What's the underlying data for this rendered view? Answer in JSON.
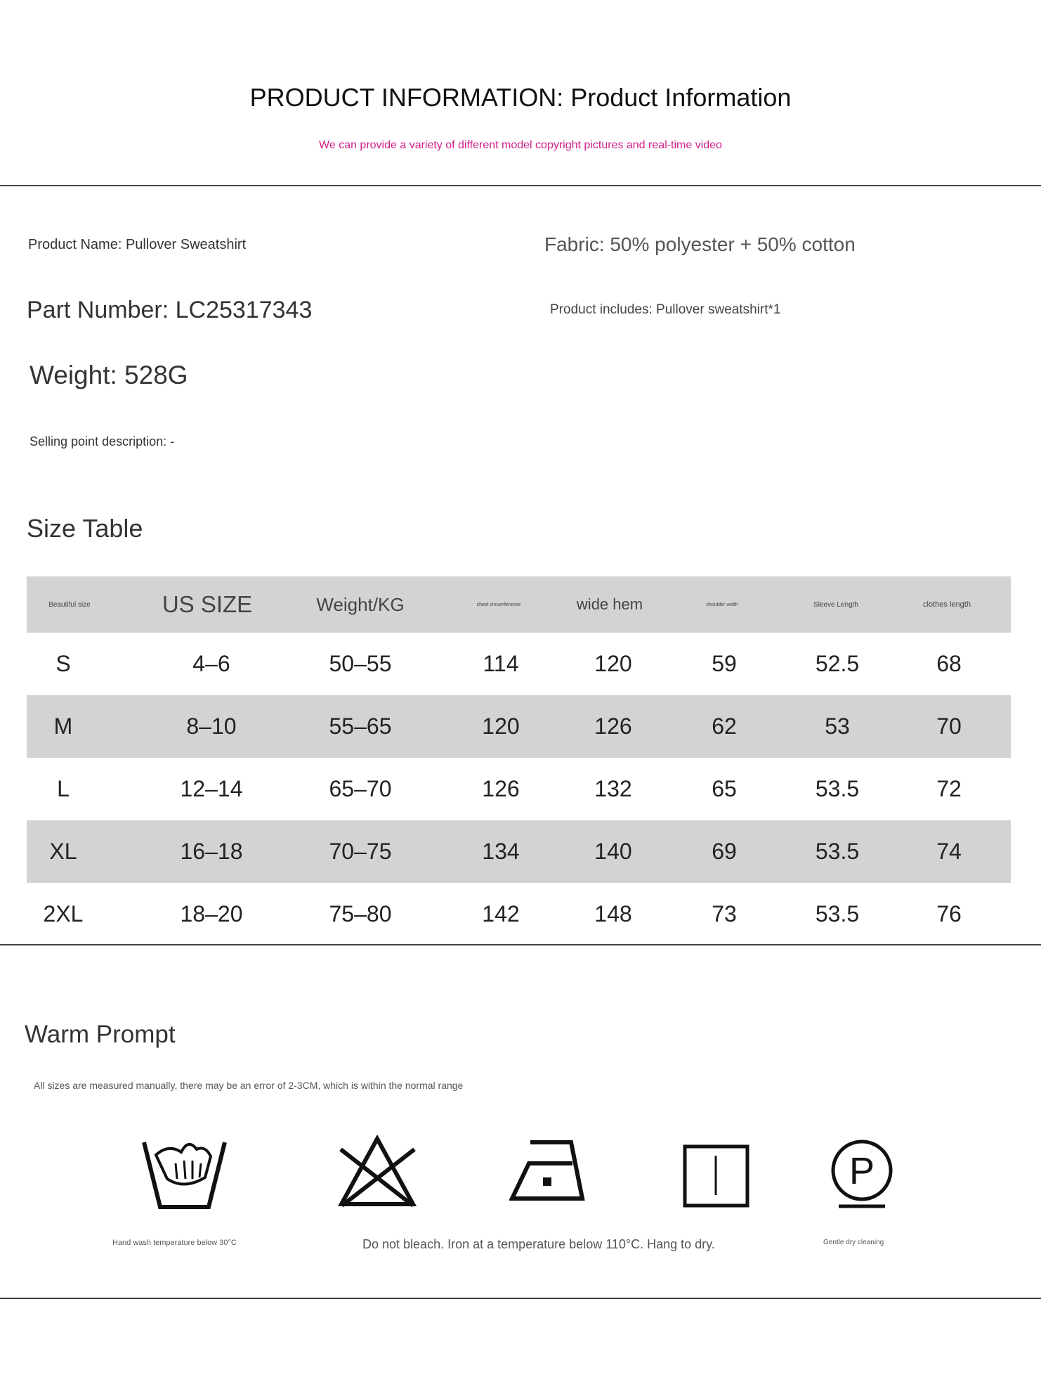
{
  "header": {
    "title": "PRODUCT INFORMATION: Product Information",
    "subtitle": "We can provide a variety of different model copyright pictures and real-time video"
  },
  "info": {
    "product_name": "Product Name: Pullover Sweatshirt",
    "fabric": "Fabric: 50% polyester + 50% cotton",
    "part_number": "Part Number: LC25317343",
    "includes": "Product includes: Pullover sweatshirt*1",
    "weight": "Weight: 528G",
    "selling_point": "Selling point description: -"
  },
  "size_table": {
    "title": "Size Table",
    "columns": [
      "Beautiful size",
      "US SIZE",
      "Weight/KG",
      "chest circumference",
      "wide hem",
      "shoulder width",
      "Sleeve Length",
      "clothes length"
    ],
    "rows": [
      [
        "S",
        "4–6",
        "50–55",
        "114",
        "120",
        "59",
        "52.5",
        "68"
      ],
      [
        "M",
        "8–10",
        "55–65",
        "120",
        "126",
        "62",
        "53",
        "70"
      ],
      [
        "L",
        "12–14",
        "65–70",
        "126",
        "132",
        "65",
        "53.5",
        "72"
      ],
      [
        "XL",
        "16–18",
        "70–75",
        "134",
        "140",
        "69",
        "53.5",
        "74"
      ],
      [
        "2XL",
        "18–20",
        "75–80",
        "142",
        "148",
        "73",
        "53.5",
        "76"
      ]
    ],
    "row_band_color": "#d3d3d3"
  },
  "warm_prompt": {
    "title": "Warm Prompt",
    "note": "All sizes are measured manually, there may be an error of 2-3CM, which is within the normal range",
    "icons": [
      "hand-wash-icon",
      "no-bleach-icon",
      "iron-low-icon",
      "hang-dry-icon",
      "dry-clean-p-icon"
    ],
    "captions": [
      "Hand wash temperature below 30°C",
      "Do not bleach. Iron at a temperature below 110°C. Hang to dry.",
      "Gentle dry cleaning"
    ]
  }
}
